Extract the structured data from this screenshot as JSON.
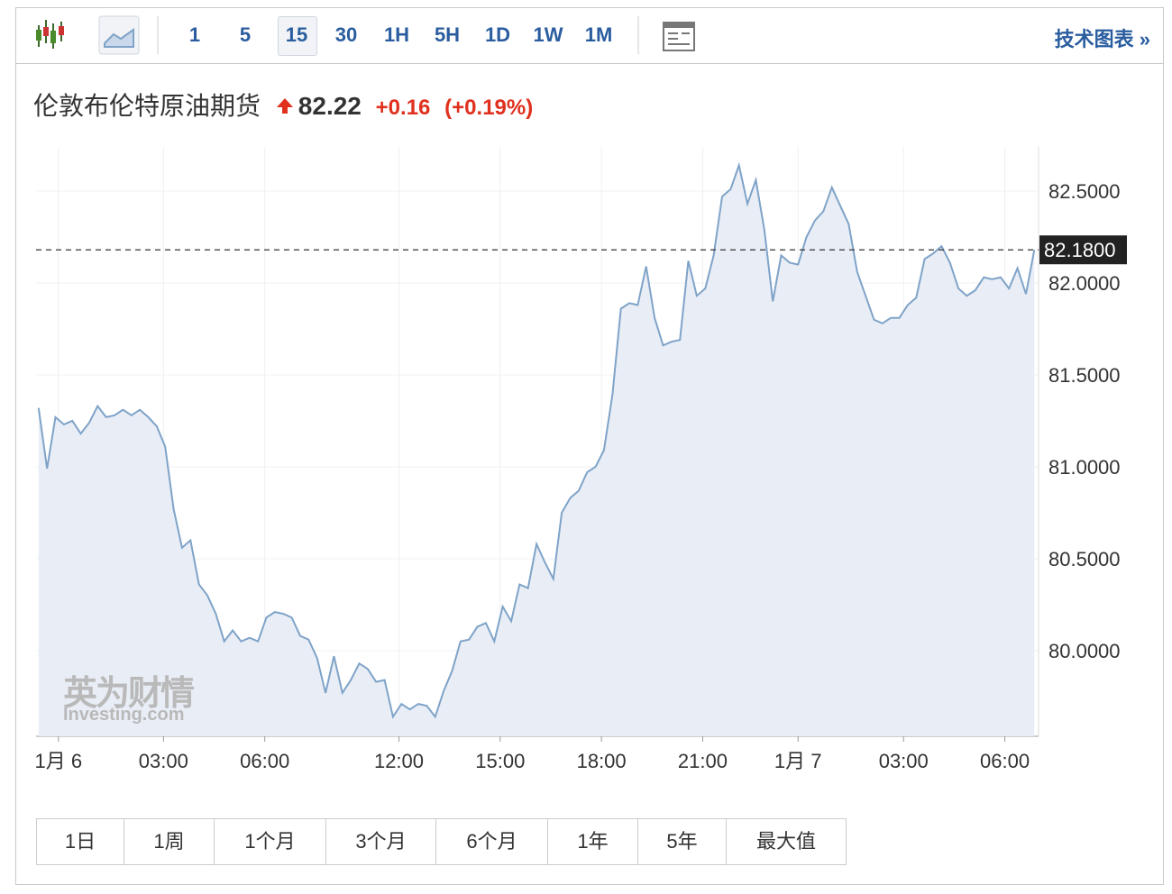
{
  "toolbar": {
    "intervals": [
      "1",
      "5",
      "15",
      "30",
      "1H",
      "5H",
      "1D",
      "1W",
      "1M"
    ],
    "selected": "15",
    "link": "技术图表 »"
  },
  "header": {
    "title": "伦敦布伦特原油期货",
    "price": "82.22",
    "change": "+0.16",
    "change_pct": "(+0.19%)"
  },
  "watermark": {
    "brand": "英为财情",
    "site": "Investing.com"
  },
  "chart_data": {
    "type": "area",
    "color": "#7fa3c8",
    "fill": "#e9eef6",
    "grid": true,
    "series": [
      {
        "name": "伦敦布伦特原油期货",
        "color": "#7fa3c8",
        "values": [
          81.32,
          80.99,
          81.27,
          81.23,
          81.25,
          81.18,
          81.24,
          81.33,
          81.27,
          81.28,
          81.31,
          81.28,
          81.31,
          81.27,
          81.22,
          81.11,
          80.77,
          80.56,
          80.6,
          80.36,
          80.3,
          80.2,
          80.05,
          80.11,
          80.05,
          80.07,
          80.05,
          80.18,
          80.21,
          80.2,
          80.18,
          80.08,
          80.06,
          79.96,
          79.77,
          79.97,
          79.77,
          79.84,
          79.93,
          79.9,
          79.83,
          79.84,
          79.64,
          79.71,
          79.68,
          79.71,
          79.7,
          79.64,
          79.78,
          79.89,
          80.05,
          80.06,
          80.13,
          80.15,
          80.05,
          80.24,
          80.16,
          80.36,
          80.34,
          80.58,
          80.48,
          80.39,
          80.75,
          80.83,
          80.87,
          80.97,
          81.0,
          81.09,
          81.39,
          81.86,
          81.89,
          81.88,
          82.09,
          81.81,
          81.66,
          81.68,
          81.69,
          82.12,
          81.93,
          81.97,
          82.15,
          82.47,
          82.51,
          82.64,
          82.43,
          82.56,
          82.29,
          81.9,
          82.15,
          82.11,
          82.1,
          82.25,
          82.34,
          82.39,
          82.52,
          82.42,
          82.32,
          82.06,
          81.93,
          81.8,
          81.78,
          81.81,
          81.81,
          81.88,
          81.92,
          82.13,
          82.16,
          82.2,
          82.11,
          81.97,
          81.93,
          81.96,
          82.03,
          82.02,
          82.03,
          81.97,
          82.08,
          81.94,
          82.18
        ]
      }
    ],
    "last_price": {
      "value": 82.18,
      "label": "82.1800"
    },
    "xlim": [
      -0.3,
      118.5
    ],
    "xticks": [
      {
        "value": 2.35,
        "label": "1月 6"
      },
      {
        "value": 14.8,
        "label": "03:00"
      },
      {
        "value": 26.8,
        "label": "06:00"
      },
      {
        "value": 42.7,
        "label": "12:00"
      },
      {
        "value": 54.7,
        "label": "15:00"
      },
      {
        "value": 66.7,
        "label": "18:00"
      },
      {
        "value": 78.7,
        "label": "21:00"
      },
      {
        "value": 90,
        "label": "1月 7"
      },
      {
        "value": 102.5,
        "label": "03:00"
      },
      {
        "value": 114.5,
        "label": "06:00"
      }
    ],
    "ylim": [
      79.534,
      82.74
    ],
    "yticks": [
      {
        "value": 80,
        "label": "80.0000"
      },
      {
        "value": 80.5,
        "label": "80.5000"
      },
      {
        "value": 81,
        "label": "81.0000"
      },
      {
        "value": 81.5,
        "label": "81.5000"
      },
      {
        "value": 82,
        "label": "82.0000"
      },
      {
        "value": 82.5,
        "label": "82.5000"
      }
    ]
  },
  "ranges": [
    "1日",
    "1周",
    "1个月",
    "3个月",
    "6个月",
    "1年",
    "5年",
    "最大值"
  ]
}
